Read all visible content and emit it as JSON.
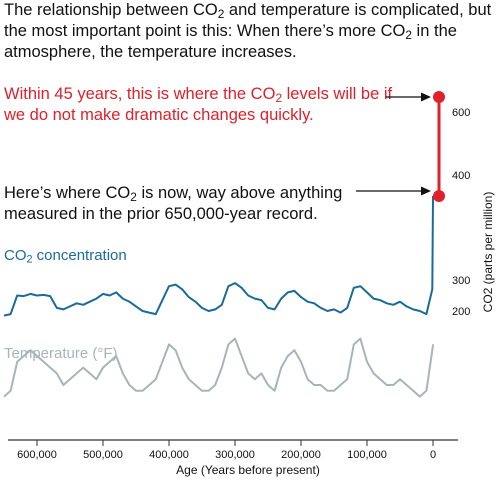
{
  "header": {
    "part1": "The relationship between CO",
    "part2": " and temperature is complicated, but the most important point is this: When there’s more CO",
    "part3": " in the atmosphere, the temperature increases.",
    "sub": "2"
  },
  "annotation_future": {
    "part1": "Within 45 years, this is where the CO",
    "part2": " levels will be if we do not make dramatic changes quickly.",
    "sub": "2",
    "color": "#e0202a"
  },
  "annotation_now": {
    "part1": "Here’s where CO",
    "part2": " is now, way above anything measured in the prior 650,000-year record.",
    "sub": "2"
  },
  "series_labels": {
    "co2_part1": "CO",
    "co2_sub": "2",
    "co2_part2": " concentration",
    "temp": "Temperature (°F)"
  },
  "chart_data": {
    "type": "line",
    "xlabel": "Age (Years before present)",
    "ylabel": "CO2 (parts per million)",
    "x_ticks": [
      "600,000",
      "500,000",
      "400,000",
      "300,000",
      "200,000",
      "100,000",
      "0"
    ],
    "y_ticks": [
      "600",
      "400",
      "300",
      "200"
    ],
    "y_tick_values": [
      600,
      400,
      300,
      200
    ],
    "colors": {
      "co2": "#1a6a9a",
      "temperature": "#a7b5b8",
      "projection": "#e0202a"
    },
    "series": [
      {
        "name": "CO2 concentration",
        "unit": "ppm",
        "x": [
          650000,
          640000,
          630000,
          620000,
          610000,
          600000,
          590000,
          580000,
          570000,
          560000,
          550000,
          540000,
          530000,
          520000,
          510000,
          500000,
          490000,
          480000,
          470000,
          460000,
          450000,
          440000,
          430000,
          420000,
          410000,
          400000,
          390000,
          380000,
          370000,
          360000,
          350000,
          340000,
          330000,
          320000,
          310000,
          300000,
          290000,
          280000,
          270000,
          260000,
          250000,
          240000,
          230000,
          220000,
          210000,
          200000,
          190000,
          180000,
          170000,
          160000,
          150000,
          140000,
          130000,
          120000,
          110000,
          100000,
          90000,
          80000,
          70000,
          60000,
          50000,
          40000,
          30000,
          20000,
          10000,
          1000,
          0
        ],
        "values": [
          185,
          190,
          250,
          248,
          255,
          250,
          252,
          248,
          210,
          205,
          215,
          225,
          220,
          230,
          240,
          255,
          250,
          260,
          240,
          230,
          215,
          200,
          195,
          190,
          235,
          280,
          285,
          270,
          245,
          230,
          210,
          200,
          205,
          220,
          280,
          290,
          275,
          250,
          240,
          235,
          210,
          205,
          240,
          260,
          265,
          245,
          230,
          225,
          210,
          200,
          205,
          195,
          210,
          275,
          280,
          260,
          240,
          235,
          225,
          220,
          230,
          215,
          205,
          200,
          190,
          270,
          380
        ]
      },
      {
        "name": "Temperature",
        "unit": "°F",
        "x": [
          650000,
          640000,
          630000,
          620000,
          610000,
          600000,
          590000,
          580000,
          570000,
          560000,
          550000,
          540000,
          530000,
          520000,
          510000,
          500000,
          490000,
          480000,
          470000,
          460000,
          450000,
          440000,
          430000,
          420000,
          410000,
          400000,
          390000,
          380000,
          370000,
          360000,
          350000,
          340000,
          330000,
          320000,
          310000,
          300000,
          290000,
          280000,
          270000,
          260000,
          250000,
          240000,
          230000,
          220000,
          210000,
          200000,
          190000,
          180000,
          170000,
          160000,
          150000,
          140000,
          130000,
          120000,
          110000,
          100000,
          90000,
          80000,
          70000,
          60000,
          50000,
          40000,
          30000,
          20000,
          10000,
          1000,
          0
        ],
        "values": [
          -8,
          -7,
          -2,
          -1,
          0,
          -1,
          -2,
          -3,
          -4,
          -6,
          -5,
          -4,
          -3,
          -4,
          -5,
          -3,
          -2,
          -1,
          -4,
          -6,
          -7,
          -7,
          -6,
          -5,
          -2,
          1,
          0,
          -3,
          -5,
          -6,
          -7,
          -7,
          -6,
          -3,
          1,
          2,
          -1,
          -4,
          -5,
          -4,
          -6,
          -7,
          -3,
          -1,
          0,
          -2,
          -5,
          -6,
          -6,
          -7,
          -7,
          -6,
          -5,
          1,
          2,
          -2,
          -4,
          -5,
          -6,
          -6,
          -5,
          -6,
          -7,
          -8,
          -7,
          0,
          1
        ]
      },
      {
        "name": "Projection",
        "unit": "ppm",
        "x": [
          0,
          0
        ],
        "values": [
          380,
          600
        ]
      }
    ]
  }
}
